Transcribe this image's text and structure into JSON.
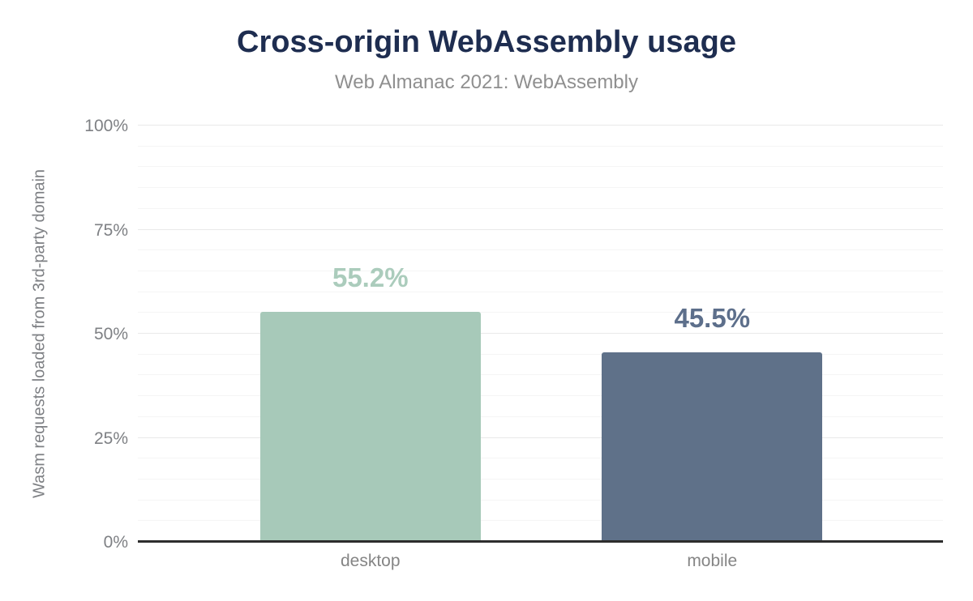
{
  "chart_data": {
    "type": "bar",
    "title": "Cross-origin WebAssembly usage",
    "subtitle": "Web Almanac 2021: WebAssembly",
    "categories": [
      "desktop",
      "mobile"
    ],
    "values": [
      55.2,
      45.5
    ],
    "value_labels": [
      "55.2%",
      "45.5%"
    ],
    "bar_colors": [
      "#a7c9b9",
      "#5f7189"
    ],
    "value_label_colors": [
      "#abccbc",
      "#5d6f8b"
    ],
    "xlabel": "",
    "ylabel": "Wasm requests loaded from 3rd-party domain",
    "ylim": [
      0,
      100
    ],
    "y_ticks": [
      0,
      25,
      50,
      75,
      100
    ],
    "y_tick_labels": [
      "0%",
      "25%",
      "50%",
      "75%",
      "100%"
    ],
    "minor_grid_step": 5,
    "major_grid_step": 25,
    "grid": true,
    "legend": "none"
  },
  "style_colors": {
    "background": "#ffffff",
    "title_text": "#1e2d50",
    "subtitle_text": "#8f8f8f",
    "axis_tick_text": "#7e8084",
    "category_text": "#858585",
    "axis_line": "#2d2d2d",
    "grid_major": "#e9e9e9",
    "grid_minor": "#f5f5f5"
  }
}
